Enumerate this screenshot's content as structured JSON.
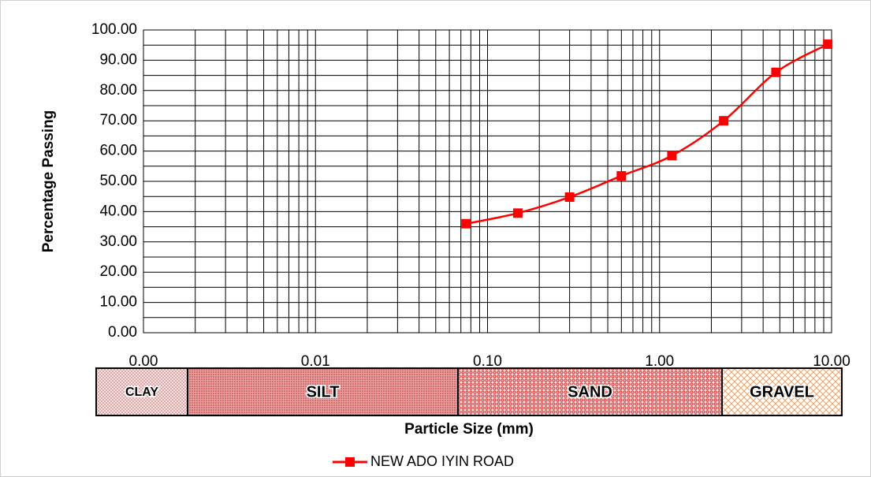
{
  "chart_data": {
    "type": "line",
    "x_label": "Particle Size (mm)",
    "y_label": "Percentage Passing",
    "x": [
      0.075,
      0.15,
      0.3,
      0.6,
      1.18,
      2.36,
      4.75,
      9.5
    ],
    "series": [
      {
        "name": "NEW ADO IYIN ROAD",
        "color": "#ff0000",
        "values": [
          36.0,
          39.5,
          44.8,
          51.8,
          58.5,
          70.0,
          86.0,
          95.3
        ]
      }
    ],
    "xlim": [
      0.001,
      10
    ],
    "x_log": true,
    "xticks": [
      {
        "value": 0.001,
        "label": "0.00"
      },
      {
        "value": 0.01,
        "label": "0.01"
      },
      {
        "value": 0.1,
        "label": "0.10"
      },
      {
        "value": 1,
        "label": "1.00"
      },
      {
        "value": 10,
        "label": "10.00"
      }
    ],
    "ylim": [
      0,
      100
    ],
    "yticks": [
      {
        "value": 0,
        "label": "0.00"
      },
      {
        "value": 10,
        "label": "10.00"
      },
      {
        "value": 20,
        "label": "20.00"
      },
      {
        "value": 30,
        "label": "30.00"
      },
      {
        "value": 40,
        "label": "40.00"
      },
      {
        "value": 50,
        "label": "50.00"
      },
      {
        "value": 60,
        "label": "60.00"
      },
      {
        "value": 70,
        "label": "70.00"
      },
      {
        "value": 80,
        "label": "80.00"
      },
      {
        "value": 90,
        "label": "90.00"
      },
      {
        "value": 100,
        "label": "100.00"
      }
    ],
    "grid": true,
    "smooth": true,
    "legend": "bottom",
    "soil_bands": [
      "CLAY",
      "SILT",
      "SAND",
      "GRAVEL"
    ]
  }
}
